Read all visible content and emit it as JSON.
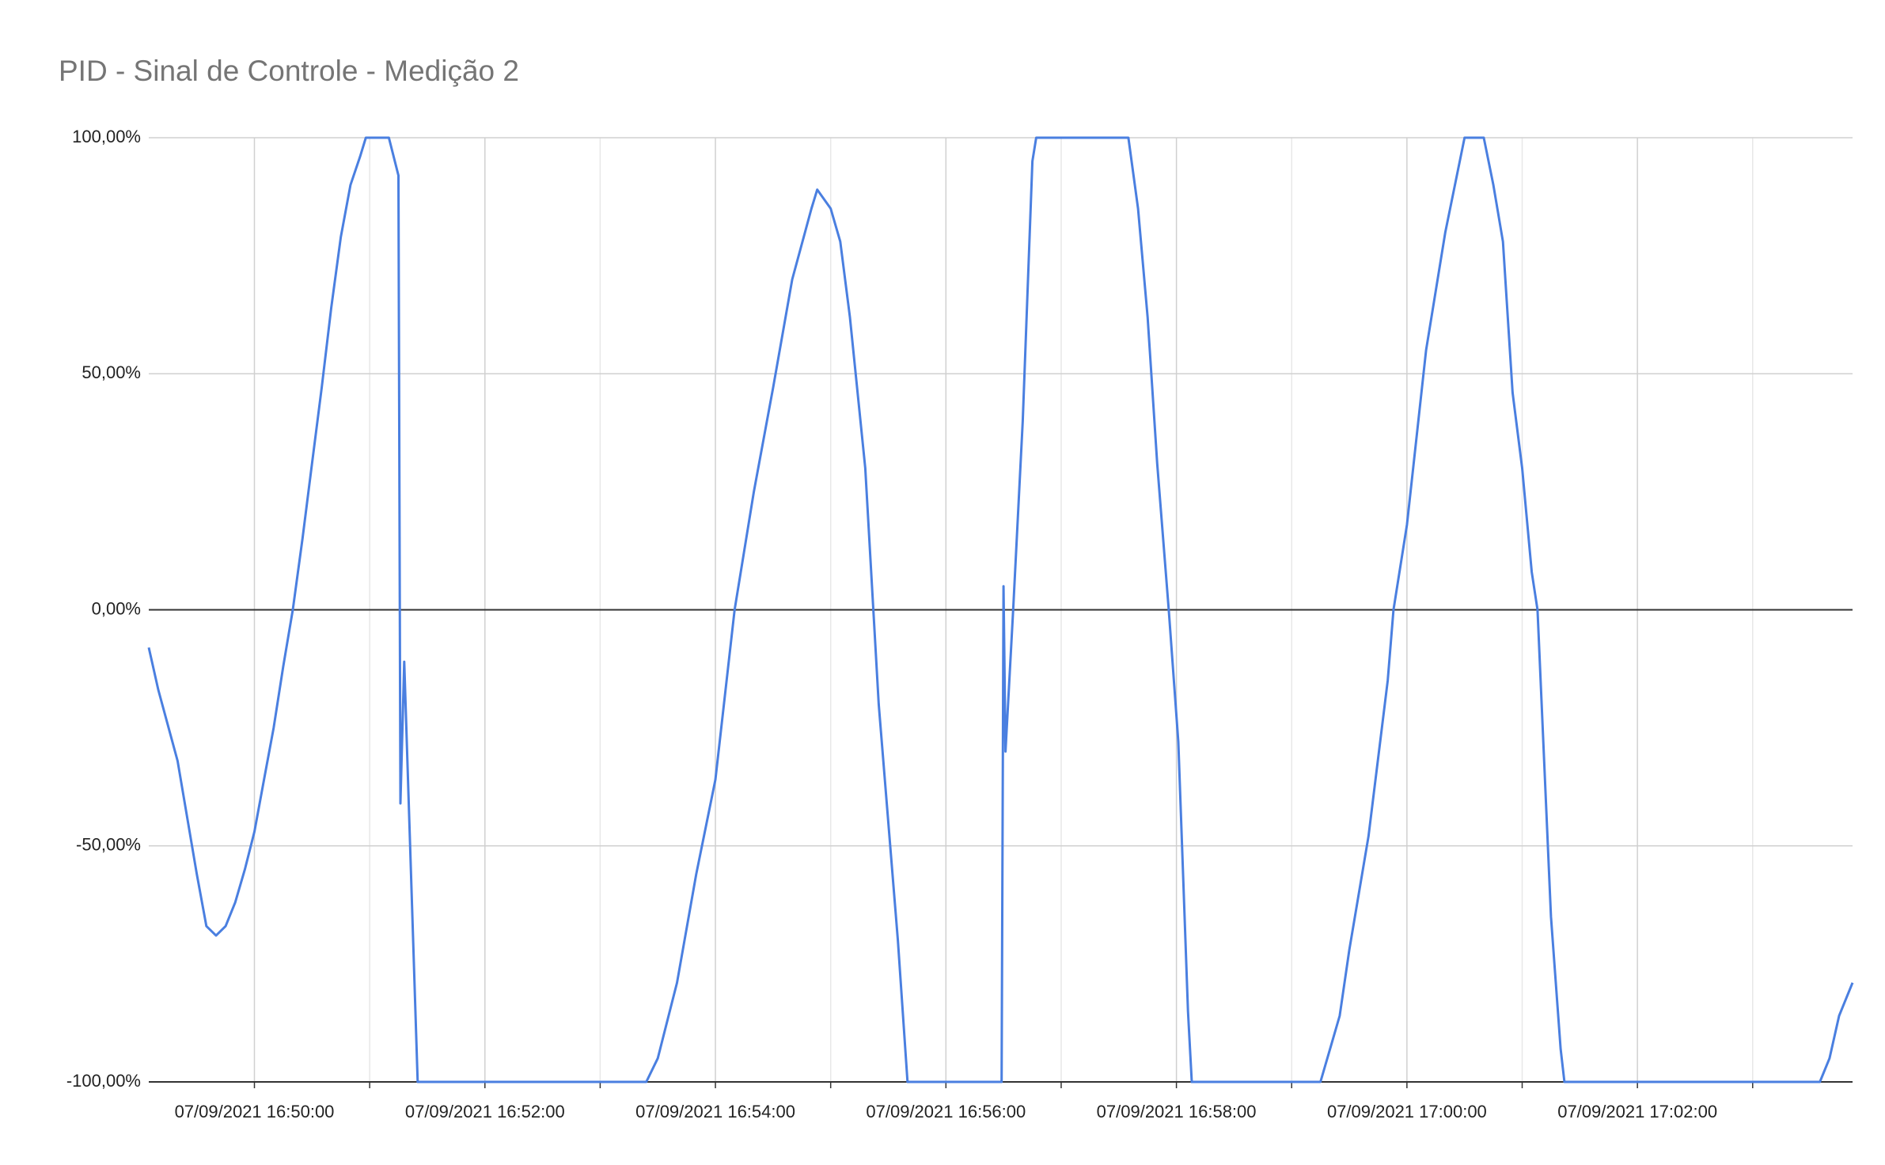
{
  "chart_data": {
    "type": "line",
    "title": "PID - Sinal de Controle - Medição 2",
    "x": [
      "07/09/2021 16:49:05",
      "07/09/2021 16:49:10",
      "07/09/2021 16:49:20",
      "07/09/2021 16:49:30",
      "07/09/2021 16:49:35",
      "07/09/2021 16:49:40",
      "07/09/2021 16:49:45",
      "07/09/2021 16:49:50",
      "07/09/2021 16:49:55",
      "07/09/2021 16:50:00",
      "07/09/2021 16:50:05",
      "07/09/2021 16:50:10",
      "07/09/2021 16:50:15",
      "07/09/2021 16:50:20",
      "07/09/2021 16:50:25",
      "07/09/2021 16:50:30",
      "07/09/2021 16:50:35",
      "07/09/2021 16:50:40",
      "07/09/2021 16:50:45",
      "07/09/2021 16:50:50",
      "07/09/2021 16:50:55",
      "07/09/2021 16:50:58",
      "07/09/2021 16:51:10",
      "07/09/2021 16:51:15",
      "07/09/2021 16:51:16",
      "07/09/2021 16:51:18",
      "07/09/2021 16:51:25",
      "07/09/2021 16:53:24",
      "07/09/2021 16:53:30",
      "07/09/2021 16:53:40",
      "07/09/2021 16:53:50",
      "07/09/2021 16:54:00",
      "07/09/2021 16:54:10",
      "07/09/2021 16:54:20",
      "07/09/2021 16:54:30",
      "07/09/2021 16:54:40",
      "07/09/2021 16:54:50",
      "07/09/2021 16:54:53",
      "07/09/2021 16:55:00",
      "07/09/2021 16:55:05",
      "07/09/2021 16:55:10",
      "07/09/2021 16:55:18",
      "07/09/2021 16:55:25",
      "07/09/2021 16:55:35",
      "07/09/2021 16:55:40",
      "07/09/2021 16:56:29",
      "07/09/2021 16:56:30",
      "07/09/2021 16:56:31",
      "07/09/2021 16:56:35",
      "07/09/2021 16:56:40",
      "07/09/2021 16:56:45",
      "07/09/2021 16:56:47",
      "07/09/2021 16:57:35",
      "07/09/2021 16:57:40",
      "07/09/2021 16:57:45",
      "07/09/2021 16:57:50",
      "07/09/2021 16:57:56",
      "07/09/2021 16:58:01",
      "07/09/2021 16:58:06",
      "07/09/2021 16:58:08",
      "07/09/2021 16:59:15",
      "07/09/2021 16:59:20",
      "07/09/2021 16:59:25",
      "07/09/2021 16:59:30",
      "07/09/2021 16:59:40",
      "07/09/2021 16:59:50",
      "07/09/2021 16:59:53",
      "07/09/2021 17:00:00",
      "07/09/2021 17:00:10",
      "07/09/2021 17:00:20",
      "07/09/2021 17:00:30",
      "07/09/2021 17:00:40",
      "07/09/2021 17:00:45",
      "07/09/2021 17:00:50",
      "07/09/2021 17:00:55",
      "07/09/2021 17:01:00",
      "07/09/2021 17:01:05",
      "07/09/2021 17:01:08",
      "07/09/2021 17:01:15",
      "07/09/2021 17:01:20",
      "07/09/2021 17:01:22",
      "07/09/2021 17:03:35",
      "07/09/2021 17:03:40",
      "07/09/2021 17:03:45",
      "07/09/2021 17:03:52"
    ],
    "series": [
      {
        "color": "#4a7fe0",
        "values": [
          -8,
          -17,
          -32,
          -56,
          -67,
          -69,
          -67,
          -62,
          -55,
          -47,
          -36,
          -25,
          -12,
          0,
          15,
          31,
          47,
          64,
          79,
          90,
          96,
          100,
          100,
          92,
          -41,
          -11,
          -100,
          -100,
          -95,
          -79,
          -56,
          -36,
          0,
          25,
          47,
          70,
          85,
          89,
          85,
          78,
          62,
          30,
          -20,
          -70,
          -100,
          -100,
          5,
          -30,
          0,
          40,
          95,
          100,
          100,
          85,
          62,
          31,
          0,
          -28,
          -85,
          -100,
          -100,
          -93,
          -86,
          -72,
          -48,
          -15,
          0,
          18,
          55,
          80,
          100,
          100,
          90,
          78,
          46,
          30,
          8,
          0,
          -65,
          -93,
          -100,
          -100,
          -95,
          -86,
          -79
        ]
      }
    ],
    "xlim": [
      "07/09/2021 16:49:05",
      "07/09/2021 17:03:52"
    ],
    "xticks": [
      "07/09/2021 16:50:00",
      "07/09/2021 16:52:00",
      "07/09/2021 16:54:00",
      "07/09/2021 16:56:00",
      "07/09/2021 16:58:00",
      "07/09/2021 17:00:00",
      "07/09/2021 17:02:00"
    ],
    "ylim": [
      -100,
      100
    ],
    "yticks": [
      {
        "value": -100,
        "label": "-100,00%"
      },
      {
        "value": -50,
        "label": "-50,00%"
      },
      {
        "value": 0,
        "label": "0,00%"
      },
      {
        "value": 50,
        "label": "50,00%"
      },
      {
        "value": 100,
        "label": "100,00%"
      }
    ],
    "grid": true
  }
}
